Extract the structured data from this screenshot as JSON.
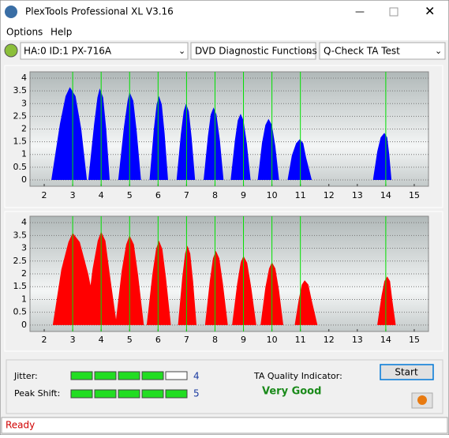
{
  "window": {
    "title": "PlexTools Professional XL V3.16",
    "menu": [
      "Options",
      "Help"
    ],
    "drive": "HA:0 ID:1  PX-716A",
    "function": "DVD Diagnostic Functions",
    "test": "Q-Check TA Test",
    "status": "Ready"
  },
  "results": {
    "jitter_label": "Jitter:",
    "jitter": 4,
    "peak_label": "Peak Shift:",
    "peak": 5,
    "quality_label": "TA Quality Indicator:",
    "quality": "Very Good",
    "start": "Start"
  },
  "chart_data": [
    {
      "type": "area",
      "color": "#0000ff",
      "marker_color": "#00e000",
      "xlim": [
        1.5,
        15.5
      ],
      "ylim": [
        -0.25,
        4.25
      ],
      "xticks": [
        2,
        3,
        4,
        5,
        6,
        7,
        8,
        9,
        10,
        11,
        12,
        13,
        14,
        15
      ],
      "yticks": [
        0,
        0.5,
        1,
        1.5,
        2,
        2.5,
        3,
        3.5,
        4
      ],
      "grid": true,
      "markers": [
        3,
        4,
        5,
        6,
        7,
        8,
        9,
        10,
        11,
        14
      ],
      "x": [
        2.25,
        2.55,
        2.75,
        2.9,
        3.1,
        3.3,
        3.5,
        null,
        3.55,
        3.75,
        3.87,
        3.95,
        4.07,
        4.18,
        4.3,
        null,
        4.6,
        4.8,
        4.93,
        5.0,
        5.13,
        5.25,
        5.4,
        null,
        5.7,
        5.85,
        5.95,
        6.03,
        6.13,
        6.23,
        6.35,
        null,
        6.65,
        6.8,
        6.9,
        6.98,
        7.08,
        7.18,
        7.3,
        null,
        7.6,
        7.75,
        7.85,
        7.95,
        8.05,
        8.17,
        8.3,
        null,
        8.55,
        8.7,
        8.8,
        8.9,
        9.0,
        9.12,
        9.25,
        null,
        9.5,
        9.65,
        9.77,
        9.88,
        10.0,
        10.12,
        10.25,
        null,
        10.55,
        10.7,
        10.85,
        10.98,
        11.1,
        11.2,
        11.4,
        null,
        13.55,
        13.7,
        13.82,
        13.95,
        14.05,
        14.12,
        14.2
      ],
      "values": [
        0,
        2.19,
        3.29,
        3.65,
        3.29,
        2.01,
        0,
        null,
        0,
        2.16,
        3.24,
        3.6,
        3.24,
        1.98,
        0,
        null,
        0,
        2.07,
        3.11,
        3.45,
        3.11,
        1.9,
        0,
        null,
        0,
        1.98,
        2.97,
        3.3,
        2.97,
        1.82,
        0,
        null,
        0,
        1.8,
        2.7,
        3.0,
        2.7,
        1.65,
        0,
        null,
        0,
        1.71,
        2.57,
        2.85,
        2.57,
        1.57,
        0,
        null,
        0,
        1.56,
        2.34,
        2.6,
        2.34,
        1.43,
        0,
        null,
        0,
        1.44,
        2.16,
        2.4,
        2.16,
        1.32,
        0,
        null,
        0,
        0.96,
        1.44,
        1.6,
        1.44,
        0.88,
        0,
        null,
        0,
        1.11,
        1.67,
        1.85,
        1.67,
        1.02,
        0
      ]
    },
    {
      "type": "area",
      "color": "#ff0000",
      "marker_color": "#00e000",
      "xlim": [
        1.5,
        15.5
      ],
      "ylim": [
        -0.25,
        4.25
      ],
      "xticks": [
        2,
        3,
        4,
        5,
        6,
        7,
        8,
        9,
        10,
        11,
        12,
        13,
        14,
        15
      ],
      "yticks": [
        0,
        0.5,
        1,
        1.5,
        2,
        2.5,
        3,
        3.5,
        4
      ],
      "grid": true,
      "markers": [
        3,
        4,
        5,
        6,
        7,
        8,
        9,
        10,
        11,
        14
      ],
      "x": [
        2.3,
        2.6,
        2.85,
        3.0,
        3.25,
        3.55,
        3.9,
        null,
        3.45,
        3.7,
        3.88,
        4.0,
        4.15,
        4.3,
        4.55,
        null,
        4.5,
        4.72,
        4.88,
        5.0,
        5.15,
        5.3,
        5.5,
        null,
        5.6,
        5.8,
        5.93,
        6.03,
        6.15,
        6.28,
        6.45,
        null,
        6.7,
        6.85,
        6.95,
        7.03,
        7.13,
        7.23,
        7.35,
        null,
        7.65,
        7.82,
        7.93,
        8.03,
        8.15,
        8.28,
        8.45,
        null,
        8.6,
        8.78,
        8.9,
        9.0,
        9.13,
        9.27,
        9.45,
        null,
        9.6,
        9.77,
        9.9,
        10.0,
        10.12,
        10.25,
        10.4,
        null,
        10.8,
        10.95,
        11.05,
        11.15,
        11.28,
        11.4,
        11.6,
        null,
        13.7,
        13.85,
        13.95,
        14.05,
        14.15,
        14.22,
        14.35
      ],
      "values": [
        0,
        2.16,
        3.24,
        3.6,
        3.24,
        1.98,
        0,
        null,
        0,
        2.19,
        3.29,
        3.65,
        3.29,
        2.01,
        0,
        null,
        0,
        2.1,
        3.15,
        3.5,
        3.15,
        1.93,
        0,
        null,
        0,
        1.98,
        2.97,
        3.3,
        2.97,
        1.82,
        0,
        null,
        0,
        1.86,
        2.79,
        3.1,
        2.79,
        1.71,
        0,
        null,
        0,
        1.74,
        2.61,
        2.9,
        2.61,
        1.6,
        0,
        null,
        0,
        1.62,
        2.43,
        2.7,
        2.43,
        1.49,
        0,
        null,
        0,
        1.47,
        2.21,
        2.45,
        2.21,
        1.35,
        0,
        null,
        0,
        1.05,
        1.58,
        1.75,
        1.58,
        0.96,
        0,
        null,
        0,
        1.14,
        1.71,
        1.9,
        1.71,
        1.05,
        0
      ]
    }
  ]
}
